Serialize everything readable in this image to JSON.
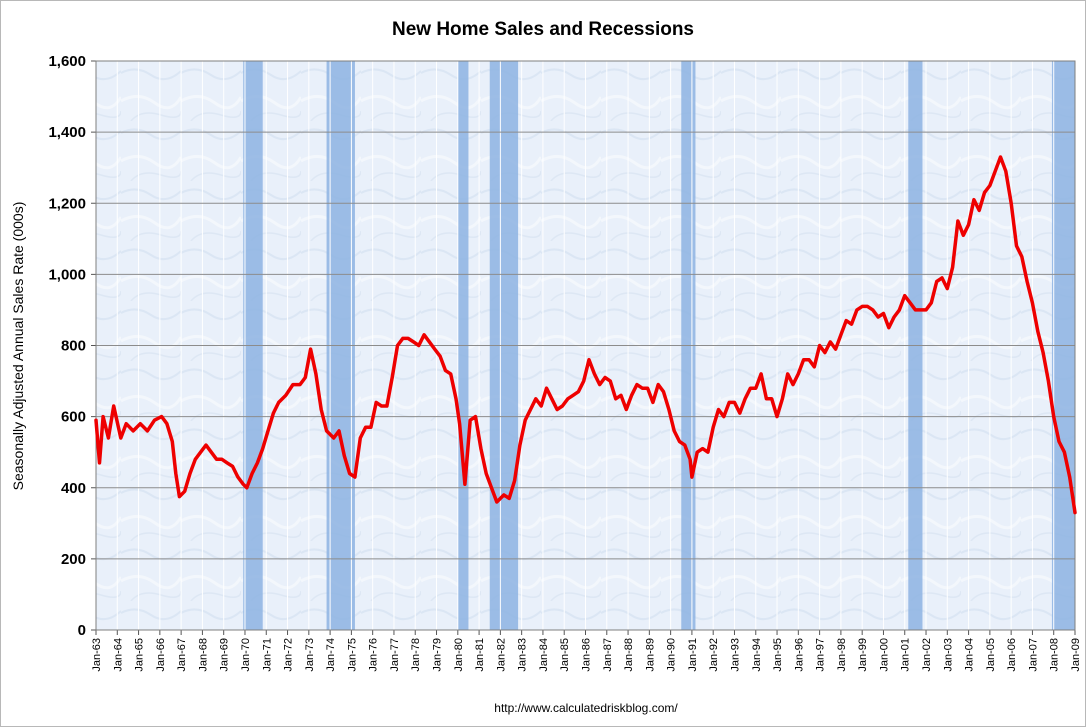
{
  "chart_data": {
    "type": "line",
    "title": "New Home Sales and Recessions",
    "ylabel": "Seasonally Adjusted Annual Sales Rate (000s)",
    "xlabel": "",
    "source_url": "http://www.calculatedriskblog.com/",
    "ylim": [
      0,
      1600
    ],
    "xlim": [
      "Jan-63",
      "Jan-09"
    ],
    "y_ticks": [
      "0",
      "200",
      "400",
      "600",
      "800",
      "1,000",
      "1,200",
      "1,400",
      "1,600"
    ],
    "y_tick_values": [
      0,
      200,
      400,
      600,
      800,
      1000,
      1200,
      1400,
      1600
    ],
    "x_ticks": [
      "Jan-63",
      "Jan-64",
      "Jan-65",
      "Jan-66",
      "Jan-67",
      "Jan-68",
      "Jan-69",
      "Jan-70",
      "Jan-71",
      "Jan-72",
      "Jan-73",
      "Jan-74",
      "Jan-75",
      "Jan-76",
      "Jan-77",
      "Jan-78",
      "Jan-79",
      "Jan-80",
      "Jan-81",
      "Jan-82",
      "Jan-83",
      "Jan-84",
      "Jan-85",
      "Jan-86",
      "Jan-87",
      "Jan-88",
      "Jan-89",
      "Jan-90",
      "Jan-91",
      "Jan-92",
      "Jan-93",
      "Jan-94",
      "Jan-95",
      "Jan-96",
      "Jan-97",
      "Jan-98",
      "Jan-99",
      "Jan-00",
      "Jan-01",
      "Jan-02",
      "Jan-03",
      "Jan-04",
      "Jan-05",
      "Jan-06",
      "Jan-07",
      "Jan-08",
      "Jan-09"
    ],
    "grid": true,
    "line_color": "#ee0000",
    "plot_background": "#e8f0fa",
    "recession_color": "#8db3e2",
    "recessions": [
      [
        "1969-12",
        "1970-11"
      ],
      [
        "1973-11",
        "1975-03"
      ],
      [
        "1980-01",
        "1980-07"
      ],
      [
        "1981-07",
        "1982-11"
      ],
      [
        "1990-07",
        "1991-03"
      ],
      [
        "2001-03",
        "2001-11"
      ],
      [
        "2007-12",
        "2009-01"
      ]
    ],
    "series": [
      {
        "values": [
          [
            "1963-01",
            590
          ],
          [
            "1963-03",
            470
          ],
          [
            "1963-05",
            600
          ],
          [
            "1963-08",
            540
          ],
          [
            "1963-11",
            630
          ],
          [
            "1964-03",
            540
          ],
          [
            "1964-06",
            580
          ],
          [
            "1964-10",
            560
          ],
          [
            "1965-02",
            580
          ],
          [
            "1965-06",
            560
          ],
          [
            "1965-10",
            590
          ],
          [
            "1966-02",
            600
          ],
          [
            "1966-05",
            580
          ],
          [
            "1966-08",
            530
          ],
          [
            "1966-10",
            440
          ],
          [
            "1966-12",
            375
          ],
          [
            "1967-03",
            390
          ],
          [
            "1967-06",
            440
          ],
          [
            "1967-09",
            480
          ],
          [
            "1967-12",
            500
          ],
          [
            "1968-03",
            520
          ],
          [
            "1968-06",
            500
          ],
          [
            "1968-09",
            480
          ],
          [
            "1968-12",
            480
          ],
          [
            "1969-03",
            470
          ],
          [
            "1969-06",
            460
          ],
          [
            "1969-09",
            430
          ],
          [
            "1969-12",
            410
          ],
          [
            "1970-02",
            400
          ],
          [
            "1970-05",
            440
          ],
          [
            "1970-08",
            470
          ],
          [
            "1970-11",
            510
          ],
          [
            "1971-02",
            560
          ],
          [
            "1971-05",
            610
          ],
          [
            "1971-08",
            640
          ],
          [
            "1971-12",
            660
          ],
          [
            "1972-04",
            690
          ],
          [
            "1972-08",
            690
          ],
          [
            "1972-11",
            710
          ],
          [
            "1973-02",
            790
          ],
          [
            "1973-05",
            720
          ],
          [
            "1973-08",
            620
          ],
          [
            "1973-11",
            560
          ],
          [
            "1974-03",
            540
          ],
          [
            "1974-06",
            560
          ],
          [
            "1974-09",
            490
          ],
          [
            "1974-12",
            440
          ],
          [
            "1975-03",
            430
          ],
          [
            "1975-06",
            540
          ],
          [
            "1975-09",
            570
          ],
          [
            "1975-12",
            570
          ],
          [
            "1976-03",
            640
          ],
          [
            "1976-06",
            630
          ],
          [
            "1976-09",
            630
          ],
          [
            "1976-12",
            710
          ],
          [
            "1977-03",
            800
          ],
          [
            "1977-06",
            820
          ],
          [
            "1977-09",
            820
          ],
          [
            "1977-12",
            810
          ],
          [
            "1978-03",
            800
          ],
          [
            "1978-06",
            830
          ],
          [
            "1978-09",
            810
          ],
          [
            "1978-12",
            790
          ],
          [
            "1979-03",
            770
          ],
          [
            "1979-06",
            730
          ],
          [
            "1979-09",
            720
          ],
          [
            "1979-12",
            650
          ],
          [
            "1980-02",
            580
          ],
          [
            "1980-05",
            410
          ],
          [
            "1980-08",
            590
          ],
          [
            "1980-11",
            600
          ],
          [
            "1981-02",
            510
          ],
          [
            "1981-05",
            440
          ],
          [
            "1981-08",
            400
          ],
          [
            "1981-11",
            360
          ],
          [
            "1982-03",
            380
          ],
          [
            "1982-06",
            370
          ],
          [
            "1982-09",
            420
          ],
          [
            "1982-12",
            520
          ],
          [
            "1983-03",
            590
          ],
          [
            "1983-06",
            620
          ],
          [
            "1983-09",
            650
          ],
          [
            "1983-12",
            630
          ],
          [
            "1984-03",
            680
          ],
          [
            "1984-06",
            650
          ],
          [
            "1984-09",
            620
          ],
          [
            "1984-12",
            630
          ],
          [
            "1985-03",
            650
          ],
          [
            "1985-06",
            660
          ],
          [
            "1985-09",
            670
          ],
          [
            "1985-12",
            700
          ],
          [
            "1986-03",
            760
          ],
          [
            "1986-06",
            720
          ],
          [
            "1986-09",
            690
          ],
          [
            "1986-12",
            710
          ],
          [
            "1987-03",
            700
          ],
          [
            "1987-06",
            650
          ],
          [
            "1987-09",
            660
          ],
          [
            "1987-12",
            620
          ],
          [
            "1988-03",
            660
          ],
          [
            "1988-06",
            690
          ],
          [
            "1988-09",
            680
          ],
          [
            "1988-12",
            680
          ],
          [
            "1989-03",
            640
          ],
          [
            "1989-06",
            690
          ],
          [
            "1989-09",
            670
          ],
          [
            "1989-12",
            620
          ],
          [
            "1990-03",
            560
          ],
          [
            "1990-06",
            530
          ],
          [
            "1990-09",
            520
          ],
          [
            "1990-12",
            480
          ],
          [
            "1991-01",
            430
          ],
          [
            "1991-04",
            500
          ],
          [
            "1991-07",
            510
          ],
          [
            "1991-10",
            500
          ],
          [
            "1992-01",
            570
          ],
          [
            "1992-04",
            620
          ],
          [
            "1992-07",
            600
          ],
          [
            "1992-10",
            640
          ],
          [
            "1993-01",
            640
          ],
          [
            "1993-04",
            610
          ],
          [
            "1993-07",
            650
          ],
          [
            "1993-10",
            680
          ],
          [
            "1994-01",
            680
          ],
          [
            "1994-04",
            720
          ],
          [
            "1994-07",
            650
          ],
          [
            "1994-10",
            650
          ],
          [
            "1995-01",
            600
          ],
          [
            "1995-04",
            650
          ],
          [
            "1995-07",
            720
          ],
          [
            "1995-10",
            690
          ],
          [
            "1996-01",
            720
          ],
          [
            "1996-04",
            760
          ],
          [
            "1996-07",
            760
          ],
          [
            "1996-10",
            740
          ],
          [
            "1997-01",
            800
          ],
          [
            "1997-04",
            780
          ],
          [
            "1997-07",
            810
          ],
          [
            "1997-10",
            790
          ],
          [
            "1998-01",
            830
          ],
          [
            "1998-04",
            870
          ],
          [
            "1998-07",
            860
          ],
          [
            "1998-10",
            900
          ],
          [
            "1999-01",
            910
          ],
          [
            "1999-04",
            910
          ],
          [
            "1999-07",
            900
          ],
          [
            "1999-10",
            880
          ],
          [
            "2000-01",
            890
          ],
          [
            "2000-04",
            850
          ],
          [
            "2000-07",
            880
          ],
          [
            "2000-10",
            900
          ],
          [
            "2001-01",
            940
          ],
          [
            "2001-04",
            920
          ],
          [
            "2001-07",
            900
          ],
          [
            "2001-10",
            900
          ],
          [
            "2002-01",
            900
          ],
          [
            "2002-04",
            920
          ],
          [
            "2002-07",
            980
          ],
          [
            "2002-10",
            990
          ],
          [
            "2003-01",
            960
          ],
          [
            "2003-04",
            1020
          ],
          [
            "2003-07",
            1150
          ],
          [
            "2003-10",
            1110
          ],
          [
            "2004-01",
            1140
          ],
          [
            "2004-04",
            1210
          ],
          [
            "2004-07",
            1180
          ],
          [
            "2004-10",
            1230
          ],
          [
            "2005-01",
            1250
          ],
          [
            "2005-04",
            1290
          ],
          [
            "2005-07",
            1330
          ],
          [
            "2005-10",
            1290
          ],
          [
            "2006-01",
            1200
          ],
          [
            "2006-04",
            1080
          ],
          [
            "2006-07",
            1050
          ],
          [
            "2006-10",
            980
          ],
          [
            "2007-01",
            920
          ],
          [
            "2007-04",
            840
          ],
          [
            "2007-07",
            780
          ],
          [
            "2007-10",
            700
          ],
          [
            "2008-01",
            600
          ],
          [
            "2008-04",
            530
          ],
          [
            "2008-07",
            500
          ],
          [
            "2008-10",
            430
          ],
          [
            "2009-01",
            330
          ]
        ]
      }
    ]
  }
}
